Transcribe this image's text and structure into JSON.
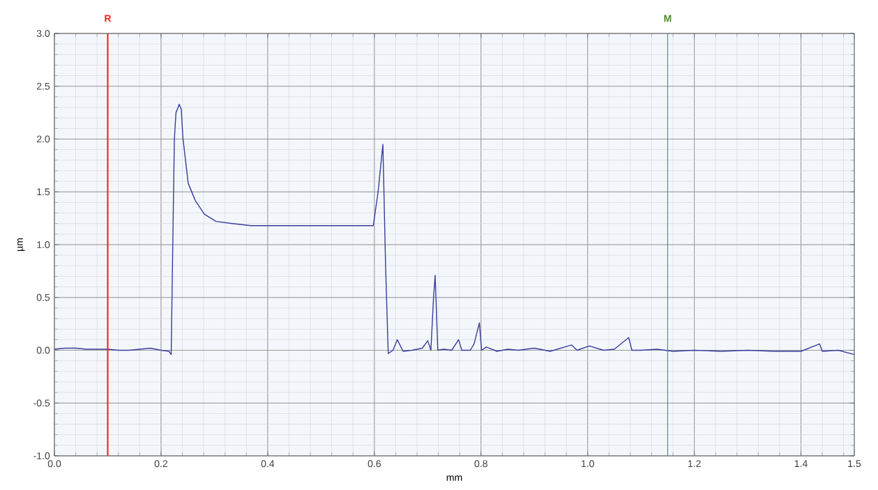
{
  "chart_data": {
    "type": "line",
    "xlabel": "mm",
    "ylabel": "µm",
    "xlim": [
      0,
      1.5
    ],
    "ylim": [
      -1.0,
      3.0
    ],
    "xticks": [
      {
        "value": 0,
        "label": "0.0"
      },
      0.2,
      0.4,
      0.6,
      0.8,
      {
        "value": 1,
        "label": "1.0"
      },
      1.2,
      1.4,
      1.5
    ],
    "yticks": [
      {
        "value": -1,
        "label": "-1.0"
      },
      -0.5,
      {
        "value": 0,
        "label": "0.0"
      },
      0.5,
      {
        "value": 1,
        "label": "1.0"
      },
      1.5,
      {
        "value": 2,
        "label": "2.0"
      },
      2.5,
      {
        "value": 3,
        "label": "3.0"
      }
    ],
    "grid": true,
    "ref_lines": [
      {
        "axis": "x",
        "value": 0.1,
        "label": "R",
        "color": "#ff2020"
      },
      {
        "axis": "x",
        "value": 1.15,
        "label": "M",
        "color": "#4a8a2a"
      }
    ],
    "series": [
      {
        "color": "#3c3c9c",
        "x": [
          0.0,
          0.02,
          0.04,
          0.06,
          0.08,
          0.1,
          0.12,
          0.14,
          0.16,
          0.18,
          0.2,
          0.215,
          0.219,
          0.222,
          0.225,
          0.228,
          0.232,
          0.234,
          0.238,
          0.241,
          0.251,
          0.264,
          0.281,
          0.303,
          0.334,
          0.369,
          0.45,
          0.55,
          0.598,
          0.607,
          0.616,
          0.621,
          0.626,
          0.635,
          0.643,
          0.654,
          0.67,
          0.69,
          0.7,
          0.706,
          0.711,
          0.714,
          0.719,
          0.73,
          0.745,
          0.758,
          0.764,
          0.78,
          0.787,
          0.797,
          0.801,
          0.81,
          0.83,
          0.85,
          0.87,
          0.9,
          0.93,
          0.97,
          0.98,
          1.003,
          1.03,
          1.05,
          1.077,
          1.083,
          1.1,
          1.13,
          1.16,
          1.2,
          1.25,
          1.3,
          1.35,
          1.4,
          1.435,
          1.44,
          1.47,
          1.5
        ],
        "values": [
          0.01,
          0.02,
          0.02,
          0.01,
          0.01,
          0.01,
          0.0,
          0.0,
          0.01,
          0.02,
          0.0,
          -0.01,
          -0.04,
          1.0,
          2.0,
          2.25,
          2.3,
          2.33,
          2.28,
          2.01,
          1.58,
          1.42,
          1.29,
          1.22,
          1.2,
          1.18,
          1.18,
          1.18,
          1.18,
          1.5,
          1.95,
          0.81,
          -0.03,
          0.0,
          0.1,
          -0.01,
          0.0,
          0.02,
          0.09,
          0.0,
          0.5,
          0.71,
          0.0,
          0.01,
          0.0,
          0.1,
          0.0,
          0.0,
          0.06,
          0.26,
          0.0,
          0.03,
          -0.01,
          0.01,
          0.0,
          0.02,
          -0.01,
          0.05,
          0.0,
          0.04,
          0.0,
          0.01,
          0.12,
          0.0,
          0.0,
          0.01,
          -0.01,
          0.0,
          -0.01,
          0.0,
          -0.01,
          -0.01,
          0.06,
          -0.01,
          0.0,
          -0.04
        ]
      }
    ]
  }
}
